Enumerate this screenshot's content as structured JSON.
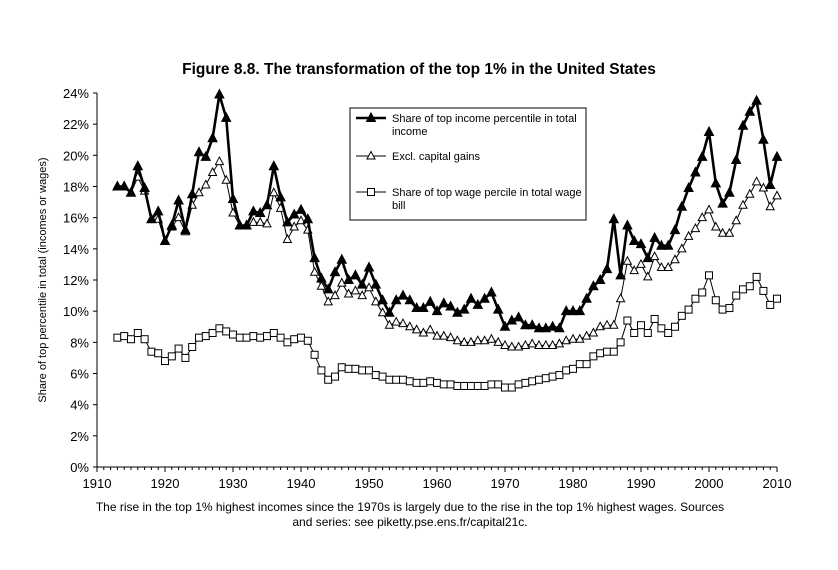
{
  "chart_data": {
    "type": "line",
    "title": "Figure 8.8. The transformation of the top 1% in the United States",
    "xlabel": "",
    "ylabel": "Share of top percentile in total (incomes or wages)",
    "xlim": [
      1910,
      2010
    ],
    "ylim": [
      0,
      24
    ],
    "x_ticks": [
      "1910",
      "1920",
      "1930",
      "1940",
      "1950",
      "1960",
      "1970",
      "1980",
      "1990",
      "2000",
      "2010"
    ],
    "y_ticks": [
      "0%",
      "2%",
      "4%",
      "6%",
      "8%",
      "10%",
      "12%",
      "14%",
      "16%",
      "18%",
      "20%",
      "22%",
      "24%"
    ],
    "grid": false,
    "legend_position": "top-center",
    "caption": "The rise in the top 1% highest incomes since the 1970s is largely due to the rise in the top 1% highest wages. Sources and series: see piketty.pse.ens.fr/capital21c.",
    "series": [
      {
        "name": "Share of top income percentile in total income",
        "marker": "filled-triangle",
        "x": [
          1913,
          1914,
          1915,
          1916,
          1917,
          1918,
          1919,
          1920,
          1921,
          1922,
          1923,
          1924,
          1925,
          1926,
          1927,
          1928,
          1929,
          1930,
          1931,
          1932,
          1933,
          1934,
          1935,
          1936,
          1937,
          1938,
          1939,
          1940,
          1941,
          1942,
          1943,
          1944,
          1945,
          1946,
          1947,
          1948,
          1949,
          1950,
          1951,
          1952,
          1953,
          1954,
          1955,
          1956,
          1957,
          1958,
          1959,
          1960,
          1961,
          1962,
          1963,
          1964,
          1965,
          1966,
          1967,
          1968,
          1969,
          1970,
          1971,
          1972,
          1973,
          1974,
          1975,
          1976,
          1977,
          1978,
          1979,
          1980,
          1981,
          1982,
          1983,
          1984,
          1985,
          1986,
          1987,
          1988,
          1989,
          1990,
          1991,
          1992,
          1993,
          1994,
          1995,
          1996,
          1997,
          1998,
          1999,
          2000,
          2001,
          2002,
          2003,
          2004,
          2005,
          2006,
          2007,
          2008,
          2009,
          2010
        ],
        "values": [
          18.0,
          18.0,
          17.6,
          19.3,
          17.9,
          15.9,
          16.4,
          14.5,
          15.5,
          17.1,
          15.2,
          17.5,
          20.2,
          19.9,
          21.1,
          23.9,
          22.4,
          17.2,
          15.5,
          15.5,
          16.4,
          16.3,
          16.8,
          19.3,
          17.3,
          15.7,
          16.2,
          16.5,
          15.9,
          13.4,
          12.1,
          11.4,
          12.5,
          13.3,
          12.0,
          12.3,
          11.7,
          12.8,
          11.7,
          10.7,
          9.9,
          10.7,
          11.0,
          10.7,
          10.2,
          10.2,
          10.6,
          10.0,
          10.5,
          10.3,
          9.9,
          10.1,
          10.8,
          10.4,
          10.8,
          11.2,
          10.1,
          9.0,
          9.4,
          9.6,
          9.1,
          9.1,
          8.9,
          8.9,
          9.0,
          8.9,
          10.0,
          10.0,
          10.0,
          10.8,
          11.6,
          12.0,
          12.7,
          15.9,
          12.3,
          15.5,
          14.5,
          14.3,
          13.4,
          14.7,
          14.2,
          14.2,
          15.2,
          16.7,
          17.9,
          18.9,
          19.9,
          21.5,
          18.2,
          16.9,
          17.6,
          19.7,
          21.9,
          22.8,
          23.5,
          21.0,
          18.1,
          19.9
        ]
      },
      {
        "name": "Excl. capital gains",
        "marker": "open-triangle",
        "x": [
          1913,
          1914,
          1915,
          1916,
          1917,
          1918,
          1919,
          1920,
          1921,
          1922,
          1923,
          1924,
          1925,
          1926,
          1927,
          1928,
          1929,
          1930,
          1931,
          1932,
          1933,
          1934,
          1935,
          1936,
          1937,
          1938,
          1939,
          1940,
          1941,
          1942,
          1943,
          1944,
          1945,
          1946,
          1947,
          1948,
          1949,
          1950,
          1951,
          1952,
          1953,
          1954,
          1955,
          1956,
          1957,
          1958,
          1959,
          1960,
          1961,
          1962,
          1963,
          1964,
          1965,
          1966,
          1967,
          1968,
          1969,
          1970,
          1971,
          1972,
          1973,
          1974,
          1975,
          1976,
          1977,
          1978,
          1979,
          1980,
          1981,
          1982,
          1983,
          1984,
          1985,
          1986,
          1987,
          1988,
          1989,
          1990,
          1991,
          1992,
          1993,
          1994,
          1995,
          1996,
          1997,
          1998,
          1999,
          2000,
          2001,
          2002,
          2003,
          2004,
          2005,
          2006,
          2007,
          2008,
          2009,
          2010
        ],
        "values": [
          18.0,
          18.0,
          17.6,
          18.6,
          17.7,
          15.9,
          15.9,
          14.5,
          15.4,
          16.0,
          15.1,
          16.8,
          17.6,
          18.1,
          18.9,
          19.6,
          18.4,
          16.3,
          15.5,
          15.5,
          15.7,
          15.7,
          15.6,
          17.6,
          16.6,
          14.6,
          15.4,
          15.8,
          15.2,
          12.5,
          11.6,
          10.6,
          11.0,
          11.8,
          11.1,
          11.3,
          11.0,
          11.5,
          10.6,
          9.9,
          9.1,
          9.3,
          9.2,
          9.0,
          8.8,
          8.6,
          8.8,
          8.4,
          8.4,
          8.3,
          8.1,
          8.0,
          8.0,
          8.1,
          8.1,
          8.2,
          8.0,
          7.8,
          7.7,
          7.7,
          7.8,
          7.9,
          7.8,
          7.8,
          7.8,
          7.9,
          8.1,
          8.2,
          8.2,
          8.4,
          8.6,
          9.0,
          9.1,
          9.1,
          10.8,
          13.2,
          12.6,
          13.0,
          12.2,
          13.5,
          12.8,
          12.8,
          13.3,
          14.0,
          14.8,
          15.3,
          16.0,
          16.5,
          15.4,
          15.0,
          15.0,
          15.8,
          16.8,
          17.5,
          18.3,
          17.9,
          16.7,
          17.4
        ]
      },
      {
        "name": "Share of top wage percile in total wage bill",
        "marker": "open-square",
        "x": [
          1913,
          1914,
          1915,
          1916,
          1917,
          1918,
          1919,
          1920,
          1921,
          1922,
          1923,
          1924,
          1925,
          1926,
          1927,
          1928,
          1929,
          1930,
          1931,
          1932,
          1933,
          1934,
          1935,
          1936,
          1937,
          1938,
          1939,
          1940,
          1941,
          1942,
          1943,
          1944,
          1945,
          1946,
          1947,
          1948,
          1949,
          1950,
          1951,
          1952,
          1953,
          1954,
          1955,
          1956,
          1957,
          1958,
          1959,
          1960,
          1961,
          1962,
          1963,
          1964,
          1965,
          1966,
          1967,
          1968,
          1969,
          1970,
          1971,
          1972,
          1973,
          1974,
          1975,
          1976,
          1977,
          1978,
          1979,
          1980,
          1981,
          1982,
          1983,
          1984,
          1985,
          1986,
          1987,
          1988,
          1989,
          1990,
          1991,
          1992,
          1993,
          1994,
          1995,
          1996,
          1997,
          1998,
          1999,
          2000,
          2001,
          2002,
          2003,
          2004,
          2005,
          2006,
          2007,
          2008,
          2009,
          2010
        ],
        "values": [
          8.3,
          8.4,
          8.2,
          8.6,
          8.2,
          7.4,
          7.3,
          6.8,
          7.1,
          7.6,
          7.0,
          7.7,
          8.3,
          8.4,
          8.6,
          8.9,
          8.7,
          8.5,
          8.3,
          8.3,
          8.4,
          8.3,
          8.4,
          8.6,
          8.3,
          8.0,
          8.2,
          8.3,
          8.1,
          7.2,
          6.2,
          5.6,
          5.8,
          6.4,
          6.3,
          6.3,
          6.2,
          6.2,
          5.9,
          5.8,
          5.6,
          5.6,
          5.6,
          5.5,
          5.4,
          5.4,
          5.5,
          5.4,
          5.3,
          5.3,
          5.2,
          5.2,
          5.2,
          5.2,
          5.2,
          5.3,
          5.3,
          5.1,
          5.1,
          5.3,
          5.4,
          5.5,
          5.6,
          5.7,
          5.8,
          5.9,
          6.2,
          6.3,
          6.6,
          6.6,
          7.1,
          7.3,
          7.4,
          7.4,
          8.0,
          9.4,
          8.6,
          9.1,
          8.6,
          9.5,
          8.9,
          8.6,
          9.0,
          9.7,
          10.1,
          10.8,
          11.2,
          12.3,
          10.7,
          10.1,
          10.2,
          11.0,
          11.4,
          11.6,
          12.2,
          11.3,
          10.4,
          10.8
        ]
      }
    ]
  }
}
